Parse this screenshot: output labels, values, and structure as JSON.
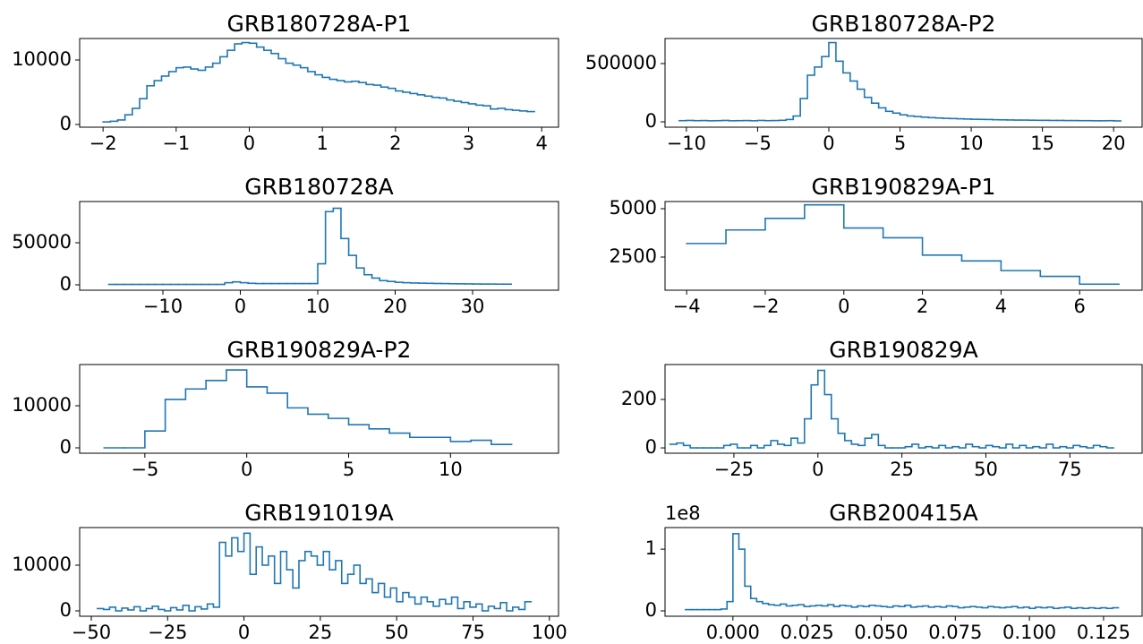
{
  "chart_data": [
    {
      "type": "histogram",
      "title": "GRB180728A-P1",
      "color": "#1f77b4",
      "bins": [
        -2.0,
        -1.9,
        -1.8,
        -1.7,
        -1.6,
        -1.5,
        -1.4,
        -1.3,
        -1.2,
        -1.1,
        -1.0,
        -0.9,
        -0.8,
        -0.7,
        -0.6,
        -0.5,
        -0.4,
        -0.3,
        -0.2,
        -0.1,
        0.0,
        0.1,
        0.2,
        0.3,
        0.4,
        0.5,
        0.6,
        0.7,
        0.8,
        0.9,
        1.0,
        1.1,
        1.2,
        1.3,
        1.4,
        1.5,
        1.6,
        1.7,
        1.8,
        1.9,
        2.0,
        2.1,
        2.2,
        2.3,
        2.4,
        2.5,
        2.6,
        2.7,
        2.8,
        2.9,
        3.0,
        3.1,
        3.2,
        3.3,
        3.4,
        3.5,
        3.6,
        3.7,
        3.8,
        3.9
      ],
      "values": [
        400,
        500,
        700,
        1500,
        2500,
        4000,
        6000,
        6800,
        7500,
        8200,
        8800,
        8900,
        8600,
        8400,
        8900,
        9500,
        10500,
        11500,
        12500,
        12700,
        12600,
        12000,
        11500,
        11000,
        10200,
        9500,
        9200,
        8800,
        8200,
        7700,
        7300,
        7000,
        6800,
        6600,
        6700,
        6500,
        6200,
        6100,
        5800,
        5600,
        5200,
        5000,
        4800,
        4600,
        4400,
        4200,
        4100,
        3800,
        3600,
        3400,
        3200,
        3000,
        2900,
        2400,
        2500,
        2300,
        2200,
        2100,
        2000
      ],
      "xlim": [
        -2.32,
        4.23
      ],
      "ylim": [
        -420,
        13330
      ],
      "xticks": [
        {
          "value": -2,
          "label": "−2"
        },
        {
          "value": -1,
          "label": "−1"
        },
        0,
        1,
        2,
        3,
        4
      ],
      "yticks": [
        0,
        10000
      ]
    },
    {
      "type": "histogram",
      "title": "GRB180728A-P2",
      "color": "#1f77b4",
      "bins": [
        -10.5,
        -10,
        -9.5,
        -9,
        -8.5,
        -8,
        -7.5,
        -7,
        -6.5,
        -6,
        -5.5,
        -5,
        -4.5,
        -4,
        -3.5,
        -3,
        -2.5,
        -2,
        -1.5,
        -1,
        -0.5,
        0,
        0.5,
        1,
        1.5,
        2,
        2.5,
        3,
        3.5,
        4,
        4.5,
        5,
        5.5,
        6,
        6.5,
        7,
        7.5,
        8,
        8.5,
        9,
        9.5,
        10,
        10.5,
        11,
        11.5,
        12,
        12.5,
        13,
        13.5,
        14,
        14.5,
        15,
        15.5,
        16,
        16.5,
        17,
        17.5,
        18,
        18.5,
        19,
        19.5,
        20,
        20.5
      ],
      "values": [
        10000,
        12000,
        10000,
        11000,
        9000,
        10000,
        12000,
        9000,
        10000,
        11000,
        9000,
        12000,
        10000,
        11000,
        13000,
        20000,
        50000,
        200000,
        400000,
        470000,
        560000,
        680000,
        520000,
        420000,
        350000,
        280000,
        210000,
        160000,
        120000,
        90000,
        75000,
        60000,
        50000,
        45000,
        40000,
        36000,
        33000,
        30000,
        28000,
        26000,
        24000,
        22000,
        21000,
        20000,
        18000,
        17000,
        16000,
        15000,
        15000,
        14000,
        13000,
        13000,
        12000,
        12000,
        11000,
        11000,
        10000,
        10000,
        9000,
        9000,
        10000,
        8000
      ],
      "xlim": [
        -11.5,
        22.0
      ],
      "ylim": [
        -46000,
        715000
      ],
      "xticks": [
        {
          "value": -10,
          "label": "−10"
        },
        {
          "value": -5,
          "label": "−5"
        },
        0,
        5,
        10,
        15,
        20
      ],
      "yticks": [
        0,
        500000
      ]
    },
    {
      "type": "histogram",
      "title": "GRB180728A",
      "color": "#1f77b4",
      "bins": [
        -17,
        -16,
        -15,
        -14,
        -13,
        -12,
        -11,
        -10,
        -9,
        -8,
        -7,
        -6,
        -5,
        -4,
        -3,
        -2,
        -1,
        0,
        1,
        2,
        3,
        4,
        5,
        6,
        7,
        8,
        9,
        10,
        11,
        12,
        13,
        14,
        15,
        16,
        17,
        18,
        19,
        20,
        21,
        22,
        23,
        24,
        25,
        26,
        27,
        28,
        29,
        30,
        31,
        32,
        33,
        34,
        35
      ],
      "values": [
        500,
        500,
        500,
        500,
        500,
        500,
        500,
        500,
        500,
        500,
        500,
        500,
        500,
        500,
        500,
        2500,
        3500,
        2500,
        1800,
        1500,
        1500,
        1500,
        1500,
        1500,
        1500,
        1500,
        1500,
        25000,
        87000,
        91000,
        55000,
        35000,
        20000,
        12000,
        8000,
        5000,
        4000,
        3000,
        2500,
        2200,
        2000,
        1800,
        1600,
        1500,
        1300,
        1200,
        1100,
        1000,
        900,
        900,
        800,
        800
      ],
      "xlim": [
        -20.75,
        41.1
      ],
      "ylim": [
        -6400,
        99000
      ],
      "xticks": [
        {
          "value": -10,
          "label": "−10"
        },
        0,
        10,
        20,
        30
      ],
      "yticks": [
        0,
        50000
      ]
    },
    {
      "type": "histogram",
      "title": "GRB190829A-P1",
      "color": "#1f77b4",
      "bins": [
        -4,
        -3,
        -2,
        -1,
        0,
        1,
        2,
        3,
        4,
        5,
        6,
        7
      ],
      "values": [
        3200,
        3900,
        4500,
        5200,
        4000,
        3500,
        2600,
        2300,
        1800,
        1500,
        1100
      ],
      "xlim": [
        -4.55,
        7.59
      ],
      "ylim": [
        787,
        5370
      ],
      "xticks": [
        {
          "value": -4,
          "label": "−4"
        },
        {
          "value": -2,
          "label": "−2"
        },
        0,
        2,
        4,
        6
      ],
      "yticks": [
        2500,
        5000
      ]
    },
    {
      "type": "histogram",
      "title": "GRB190829A-P2",
      "color": "#1f77b4",
      "bins": [
        -7,
        -6,
        -5,
        -4,
        -3,
        -2,
        -1,
        0,
        1,
        2,
        3,
        4,
        5,
        6,
        7,
        8,
        9,
        10,
        11,
        12,
        13
      ],
      "values": [
        0,
        0,
        4000,
        11500,
        14000,
        16000,
        18500,
        14500,
        13000,
        9500,
        8000,
        7000,
        5500,
        4500,
        3500,
        2500,
        2500,
        1500,
        1800,
        800
      ],
      "xlim": [
        -8.2,
        15.3
      ],
      "ylim": [
        -1280,
        19800
      ],
      "xticks": [
        {
          "value": -5,
          "label": "−5"
        },
        0,
        5,
        10
      ],
      "yticks": [
        0,
        10000
      ]
    },
    {
      "type": "histogram",
      "title": "GRB190829A",
      "color": "#1f77b4",
      "bins": [
        -44,
        -42,
        -40,
        -38,
        -36,
        -34,
        -32,
        -30,
        -28,
        -26,
        -24,
        -22,
        -20,
        -18,
        -16,
        -14,
        -12,
        -10,
        -8,
        -6,
        -4,
        -2,
        0,
        2,
        4,
        6,
        8,
        10,
        12,
        14,
        16,
        18,
        20,
        22,
        24,
        26,
        28,
        30,
        32,
        34,
        36,
        38,
        40,
        42,
        44,
        46,
        48,
        50,
        52,
        54,
        56,
        58,
        60,
        62,
        64,
        66,
        68,
        70,
        72,
        74,
        76,
        78,
        80,
        82,
        84,
        86,
        88
      ],
      "values": [
        15,
        20,
        10,
        0,
        0,
        0,
        0,
        0,
        10,
        15,
        0,
        0,
        10,
        0,
        10,
        30,
        15,
        10,
        40,
        20,
        120,
        260,
        320,
        220,
        120,
        60,
        30,
        15,
        10,
        40,
        55,
        10,
        0,
        0,
        0,
        5,
        15,
        0,
        5,
        0,
        10,
        0,
        5,
        0,
        15,
        5,
        0,
        10,
        5,
        0,
        15,
        0,
        10,
        0,
        5,
        0,
        15,
        0,
        5,
        0,
        10,
        5,
        0,
        10,
        5,
        0
      ],
      "xlim": [
        -45.5,
        96.5
      ],
      "ylim": [
        -22,
        344
      ],
      "xticks": [
        {
          "value": -25,
          "label": "−25"
        },
        0,
        25,
        50,
        75
      ],
      "yticks": [
        0,
        200
      ]
    },
    {
      "type": "histogram",
      "title": "GRB191019A",
      "color": "#1f77b4",
      "bins": [
        -48,
        -46,
        -44,
        -42,
        -40,
        -38,
        -36,
        -34,
        -32,
        -30,
        -28,
        -26,
        -24,
        -22,
        -20,
        -18,
        -16,
        -14,
        -12,
        -10,
        -8,
        -6,
        -4,
        -2,
        0,
        2,
        4,
        6,
        8,
        10,
        12,
        14,
        16,
        18,
        20,
        22,
        24,
        26,
        28,
        30,
        32,
        34,
        36,
        38,
        40,
        42,
        44,
        46,
        48,
        50,
        52,
        54,
        56,
        58,
        60,
        62,
        64,
        66,
        68,
        70,
        72,
        74,
        76,
        78,
        80,
        82,
        84,
        86,
        88,
        90,
        92,
        94
      ],
      "values": [
        500,
        300,
        800,
        0,
        600,
        200,
        900,
        0,
        500,
        1000,
        300,
        0,
        700,
        200,
        1200,
        0,
        900,
        400,
        1500,
        800,
        15000,
        12000,
        16000,
        13000,
        17000,
        8000,
        14000,
        10000,
        12000,
        6000,
        13000,
        9000,
        5000,
        11000,
        13000,
        12000,
        10000,
        13000,
        9000,
        11000,
        6000,
        8000,
        10000,
        6000,
        7000,
        4000,
        6000,
        3000,
        5000,
        2000,
        4000,
        3000,
        1500,
        3000,
        2000,
        1000,
        2500,
        1500,
        3000,
        500,
        2000,
        800,
        1500,
        0,
        1000,
        500,
        1800,
        0,
        800,
        300,
        2000
      ],
      "xlim": [
        -53.8,
        103
      ],
      "ylim": [
        -1180,
        18240
      ],
      "xticks": [
        {
          "value": -50,
          "label": "−50"
        },
        {
          "value": -25,
          "label": "−25"
        },
        0,
        25,
        50,
        75,
        100
      ],
      "yticks": [
        0,
        10000
      ]
    },
    {
      "type": "histogram",
      "title": "GRB200415A",
      "color": "#1f77b4",
      "y_offset_label": "1e8",
      "bins": [
        -0.016,
        -0.014,
        -0.012,
        -0.01,
        -0.008,
        -0.006,
        -0.004,
        -0.002,
        0.0,
        0.002,
        0.004,
        0.006,
        0.008,
        0.01,
        0.012,
        0.014,
        0.016,
        0.018,
        0.02,
        0.022,
        0.024,
        0.026,
        0.028,
        0.03,
        0.032,
        0.034,
        0.036,
        0.038,
        0.04,
        0.042,
        0.044,
        0.046,
        0.048,
        0.05,
        0.052,
        0.054,
        0.056,
        0.058,
        0.06,
        0.062,
        0.064,
        0.066,
        0.068,
        0.07,
        0.072,
        0.074,
        0.076,
        0.078,
        0.08,
        0.082,
        0.084,
        0.086,
        0.088,
        0.09,
        0.092,
        0.094,
        0.096,
        0.098,
        0.1,
        0.102,
        0.104,
        0.106,
        0.108,
        0.11,
        0.112,
        0.114,
        0.116,
        0.118,
        0.12,
        0.122,
        0.124,
        0.126,
        0.128,
        0.13
      ],
      "values": [
        2000000,
        2000000,
        2000000,
        2000000,
        2000000,
        2000000,
        3000000,
        15000000,
        125000000,
        100000000,
        40000000,
        20000000,
        15000000,
        12000000,
        10000000,
        9000000,
        11000000,
        8000000,
        9000000,
        10000000,
        7000000,
        8000000,
        9000000,
        8000000,
        10000000,
        7000000,
        9000000,
        8000000,
        6000000,
        8000000,
        7000000,
        9000000,
        8000000,
        7000000,
        6000000,
        8000000,
        7000000,
        9000000,
        6000000,
        7000000,
        8000000,
        6000000,
        7000000,
        6000000,
        8000000,
        7000000,
        5000000,
        6000000,
        7000000,
        6000000,
        5000000,
        7000000,
        6000000,
        5000000,
        6000000,
        7000000,
        5000000,
        6000000,
        4000000,
        6000000,
        5000000,
        6000000,
        4000000,
        5000000,
        6000000,
        4000000,
        5000000,
        4000000,
        5000000,
        4000000,
        5000000,
        4000000,
        5000000
      ],
      "xlim": [
        -0.0229,
        0.138
      ],
      "ylim": [
        -8700000,
        135000000
      ],
      "xticks": [
        {
          "value": 0,
          "label": "0.000"
        },
        {
          "value": 0.025,
          "label": "0.025"
        },
        {
          "value": 0.05,
          "label": "0.050"
        },
        {
          "value": 0.075,
          "label": "0.075"
        },
        {
          "value": 0.1,
          "label": "0.100"
        },
        {
          "value": 0.125,
          "label": "0.125"
        }
      ],
      "yticks": [
        0,
        {
          "value": 100000000,
          "label": "1"
        }
      ]
    }
  ]
}
